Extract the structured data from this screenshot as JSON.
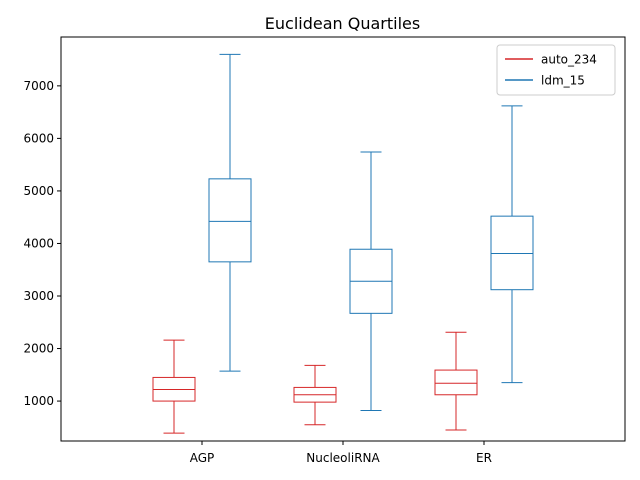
{
  "chart_data": {
    "type": "box",
    "title": "Euclidean Quartiles",
    "xlabel": "",
    "ylabel": "",
    "categories": [
      "AGP",
      "NucleoliRNA",
      "ER"
    ],
    "ylim": [
      240,
      7930
    ],
    "yticks": [
      1000,
      2000,
      3000,
      4000,
      5000,
      6000,
      7000
    ],
    "grid": false,
    "legend_position": "top-right",
    "series": [
      {
        "name": "auto_234",
        "color": "#d62728",
        "boxes": [
          {
            "whisker_low": 390,
            "q1": 1000,
            "median": 1220,
            "q3": 1450,
            "whisker_high": 2160
          },
          {
            "whisker_low": 550,
            "q1": 980,
            "median": 1120,
            "q3": 1260,
            "whisker_high": 1680
          },
          {
            "whisker_low": 450,
            "q1": 1120,
            "median": 1340,
            "q3": 1590,
            "whisker_high": 2310
          }
        ]
      },
      {
        "name": "ldm_15",
        "color": "#1f77b4",
        "boxes": [
          {
            "whisker_low": 1570,
            "q1": 3650,
            "median": 4420,
            "q3": 5230,
            "whisker_high": 7600
          },
          {
            "whisker_low": 820,
            "q1": 2670,
            "median": 3280,
            "q3": 3890,
            "whisker_high": 5740
          },
          {
            "whisker_low": 1350,
            "q1": 3120,
            "median": 3810,
            "q3": 4520,
            "whisker_high": 6620
          }
        ]
      }
    ]
  }
}
